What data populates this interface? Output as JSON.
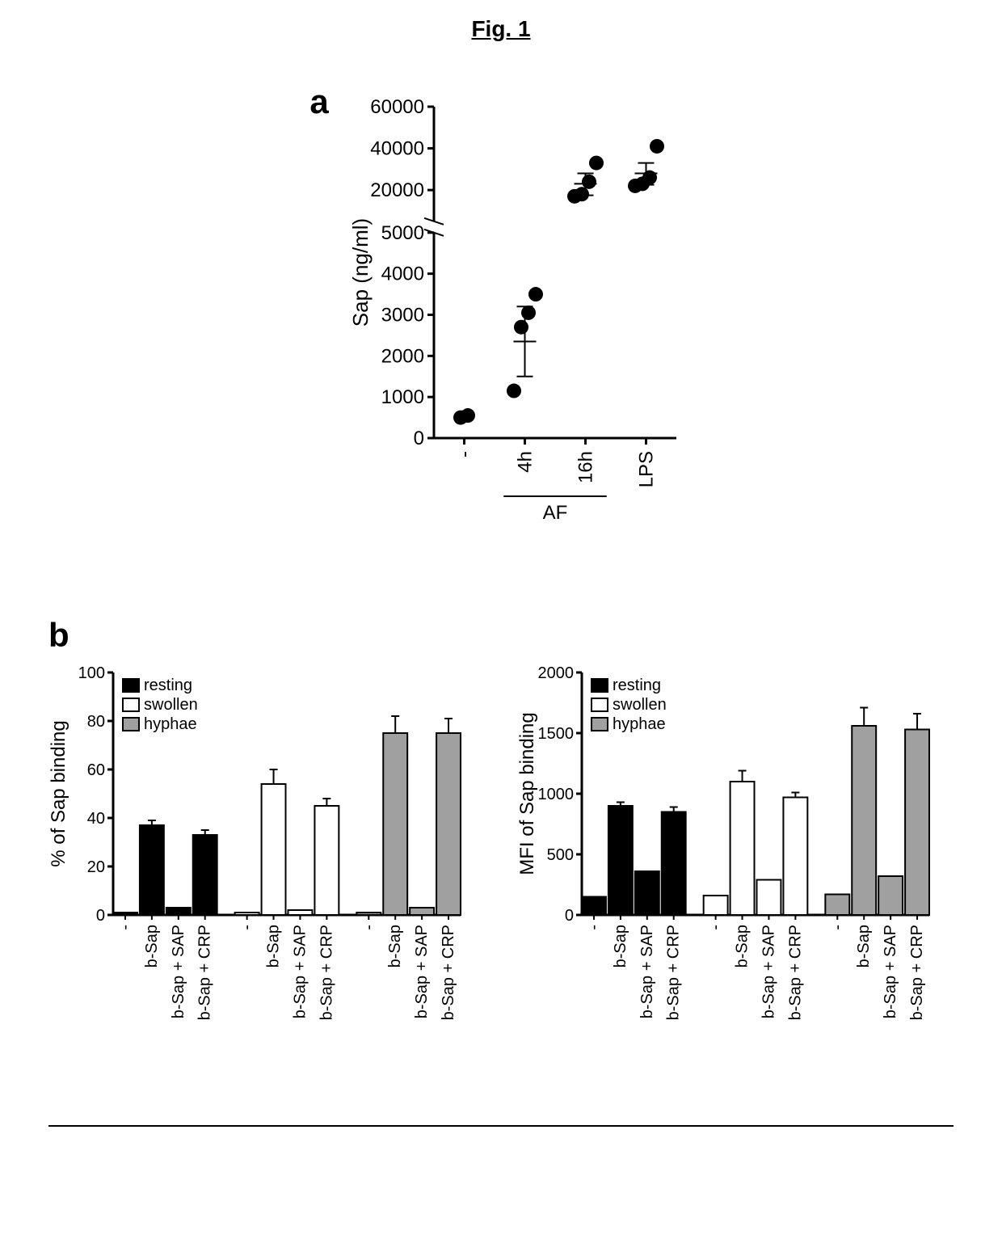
{
  "figure": {
    "title": "Fig. 1",
    "panel_a_label": "a",
    "panel_b_label": "b"
  },
  "panel_a": {
    "type": "scatter",
    "ylabel": "Sap (ng/ml)",
    "categories": [
      "-",
      "4h",
      "16h",
      "LPS"
    ],
    "group_label": "AF",
    "group_span": [
      1,
      2
    ],
    "yaxis_lower": {
      "min": 0,
      "max": 5000,
      "ticks": [
        0,
        1000,
        2000,
        3000,
        4000,
        5000
      ]
    },
    "yaxis_upper": {
      "min": 5000,
      "max": 60000,
      "ticks": [
        20000,
        40000,
        60000
      ]
    },
    "points": {
      "-": [
        500,
        550
      ],
      "4h": [
        1150,
        2700,
        3050,
        3500
      ],
      "16h": [
        17000,
        18000,
        24000,
        33000
      ],
      "LPS": [
        22000,
        23000,
        26000,
        41000
      ]
    },
    "error_bars": {
      "4h": {
        "mean": 2350,
        "low": 1500,
        "high": 3200
      },
      "16h": {
        "mean": 23000,
        "low": 17500,
        "high": 28000
      },
      "LPS": {
        "mean": 28000,
        "low": 22500,
        "high": 33000
      }
    },
    "marker_color": "#000000",
    "marker_size": 9,
    "axis_color": "#000000",
    "axis_width": 3,
    "font_size_axis": 26,
    "font_size_ticks": 24
  },
  "panel_b_shared": {
    "legend": [
      "resting",
      "swollen",
      "hyphae"
    ],
    "legend_fills": [
      "#000000",
      "#ffffff",
      "#a0a0a0"
    ],
    "group_conditions": [
      "-",
      "b-Sap",
      "b-Sap + SAP",
      "b-Sap + CRP"
    ],
    "axis_color": "#000000",
    "axis_width": 3,
    "font_size_axis": 24,
    "font_size_ticks": 20,
    "font_size_legend": 20,
    "bar_border_color": "#000000",
    "bar_border_width": 2
  },
  "panel_b_left": {
    "type": "bar",
    "ylabel": "% of  Sap binding",
    "ylim": [
      0,
      100
    ],
    "yticks": [
      0,
      20,
      40,
      60,
      80,
      100
    ],
    "groups": [
      {
        "fill": "#000000",
        "values": [
          1,
          37,
          3,
          33
        ],
        "errors": [
          0,
          2,
          0,
          2
        ]
      },
      {
        "fill": "#ffffff",
        "values": [
          1,
          54,
          2,
          45
        ],
        "errors": [
          0,
          6,
          0,
          3
        ]
      },
      {
        "fill": "#a0a0a0",
        "values": [
          1,
          75,
          3,
          75
        ],
        "errors": [
          0,
          7,
          0,
          6
        ]
      }
    ]
  },
  "panel_b_right": {
    "type": "bar",
    "ylabel": "MFI of  Sap binding",
    "ylim": [
      0,
      2000
    ],
    "yticks": [
      0,
      500,
      1000,
      1500,
      2000
    ],
    "groups": [
      {
        "fill": "#000000",
        "values": [
          150,
          900,
          360,
          850
        ],
        "errors": [
          0,
          30,
          0,
          40
        ]
      },
      {
        "fill": "#ffffff",
        "values": [
          160,
          1100,
          290,
          970
        ],
        "errors": [
          0,
          90,
          0,
          40
        ]
      },
      {
        "fill": "#a0a0a0",
        "values": [
          170,
          1560,
          320,
          1530
        ],
        "errors": [
          0,
          150,
          0,
          130
        ]
      }
    ]
  }
}
